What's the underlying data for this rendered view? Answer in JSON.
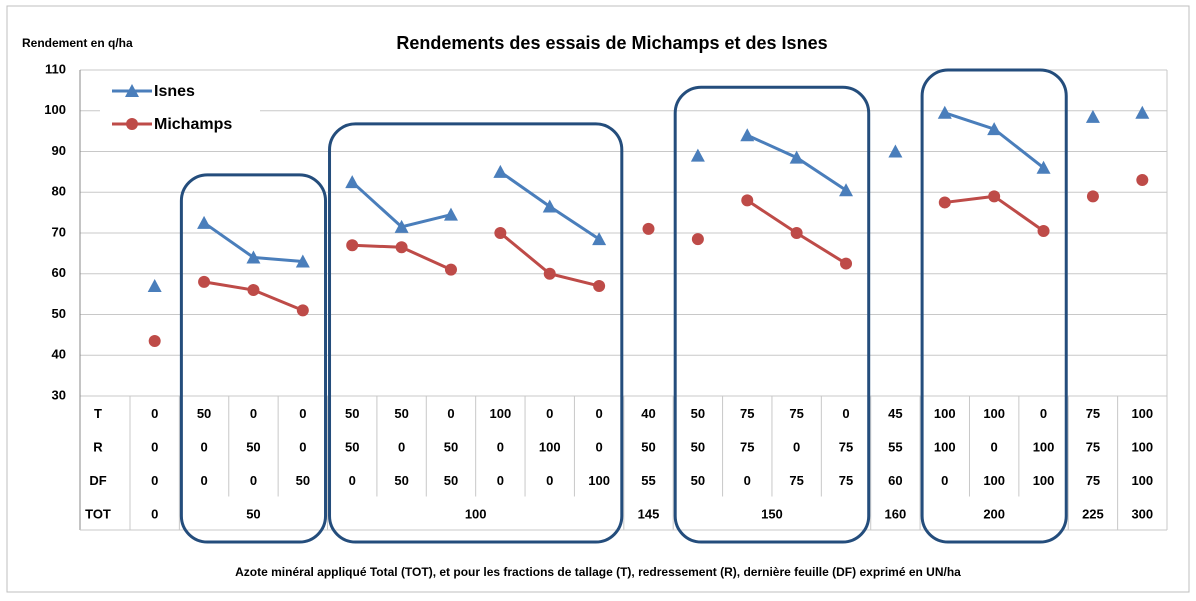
{
  "chart_data": {
    "type": "line",
    "title": "Rendements des essais de Michamps et des Isnes",
    "y_label": "Rendement en q/ha",
    "x_label": "Azote minéral appliqué  Total (TOT), et pour les fractions de tallage (T), redressement (R), dernière feuille (DF) exprimé en UN/ha",
    "ylim": [
      30,
      110
    ],
    "yticks": [
      30,
      40,
      50,
      60,
      70,
      80,
      90,
      100,
      110
    ],
    "grid": true,
    "legend": "top-left",
    "connected": [
      [
        1,
        3
      ],
      [
        4,
        6
      ],
      [
        7,
        9
      ],
      [
        12,
        14
      ],
      [
        16,
        18
      ]
    ],
    "series": [
      {
        "name": "Isnes",
        "color": "#4a7ebb",
        "marker": "triangle",
        "values": [
          57,
          72.5,
          64,
          63,
          82.5,
          71.5,
          74.5,
          85,
          76.5,
          68.5,
          null,
          89,
          94,
          88.5,
          80.5,
          90,
          99.5,
          95.5,
          86,
          98.5,
          99.5
        ]
      },
      {
        "name": "Michamps",
        "color": "#be4b48",
        "marker": "circle",
        "values": [
          43.5,
          58,
          56,
          51,
          67,
          66.5,
          61,
          70,
          60,
          57,
          71,
          68.5,
          78,
          70,
          62.5,
          null,
          77.5,
          79,
          70.5,
          79,
          83
        ]
      }
    ],
    "table": {
      "row_labels": [
        "T",
        "R",
        "DF",
        "TOT"
      ],
      "rows": [
        [
          0,
          50,
          0,
          0,
          50,
          50,
          0,
          100,
          0,
          0,
          40,
          50,
          75,
          75,
          0,
          45,
          100,
          100,
          0,
          75,
          100
        ],
        [
          0,
          0,
          50,
          0,
          50,
          0,
          50,
          0,
          100,
          0,
          50,
          50,
          75,
          0,
          75,
          55,
          100,
          0,
          100,
          75,
          100
        ],
        [
          0,
          0,
          0,
          50,
          0,
          50,
          50,
          0,
          0,
          100,
          55,
          50,
          0,
          75,
          75,
          60,
          0,
          100,
          100,
          75,
          100
        ]
      ],
      "totals": [
        {
          "value": 0,
          "span": 1
        },
        {
          "value": 50,
          "span": 3
        },
        {
          "value": 100,
          "span": 6
        },
        {
          "value": 145,
          "span": 1
        },
        {
          "value": 150,
          "span": 4
        },
        {
          "value": 160,
          "span": 1
        },
        {
          "value": 200,
          "span": 3
        },
        {
          "value": 225,
          "span": 1
        },
        {
          "value": 300,
          "span": 1
        }
      ]
    }
  }
}
